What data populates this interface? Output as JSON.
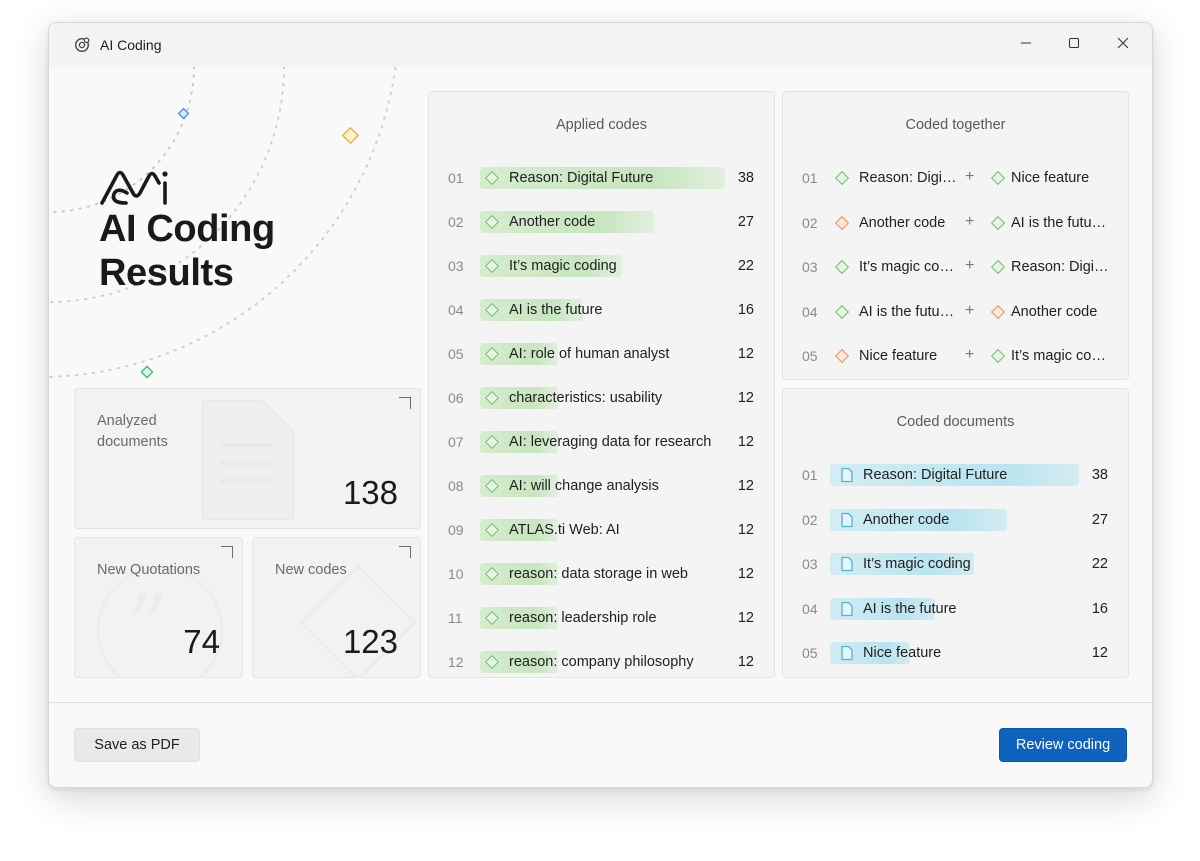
{
  "window": {
    "title": "AI Coding"
  },
  "hero": {
    "title_line1": "AI Coding",
    "title_line2": "Results"
  },
  "stats": {
    "analyzed": {
      "label": "Analyzed documents",
      "value": "138"
    },
    "quotations": {
      "label": "New Quotations",
      "value": "74"
    },
    "codes": {
      "label": "New codes",
      "value": "123"
    }
  },
  "applied_codes": {
    "title": "Applied codes",
    "max_count": 38,
    "rows": [
      {
        "num": "01",
        "label": "Reason: Digital Future",
        "count": "38",
        "fraction": 1.0
      },
      {
        "num": "02",
        "label": "Another code",
        "count": "27",
        "fraction": 0.71
      },
      {
        "num": "03",
        "label": "It’s magic coding",
        "count": "22",
        "fraction": 0.58
      },
      {
        "num": "04",
        "label": "AI is the future",
        "count": "16",
        "fraction": 0.42
      },
      {
        "num": "05",
        "label": "AI: role of human analyst",
        "count": "12",
        "fraction": 0.32
      },
      {
        "num": "06",
        "label": "characteristics: usability",
        "count": "12",
        "fraction": 0.32
      },
      {
        "num": "07",
        "label": "AI: leveraging data for research",
        "count": "12",
        "fraction": 0.32
      },
      {
        "num": "08",
        "label": "AI: will change analysis",
        "count": "12",
        "fraction": 0.32
      },
      {
        "num": "09",
        "label": "ATLAS.ti Web: AI",
        "count": "12",
        "fraction": 0.32
      },
      {
        "num": "10",
        "label": "reason: data storage in web",
        "count": "12",
        "fraction": 0.32
      },
      {
        "num": "11",
        "label": "reason: leadership role",
        "count": "12",
        "fraction": 0.32
      },
      {
        "num": "12",
        "label": "reason: company philosophy",
        "count": "12",
        "fraction": 0.32
      }
    ]
  },
  "coded_together": {
    "title": "Coded together",
    "rows": [
      {
        "num": "01",
        "left": "Reason: Digi…",
        "left_color": "green",
        "right": "Nice feature",
        "right_color": "green"
      },
      {
        "num": "02",
        "left": "Another code",
        "left_color": "orange",
        "right": "AI is the futu…",
        "right_color": "green"
      },
      {
        "num": "03",
        "left": "It’s magic co…",
        "left_color": "green",
        "right": "Reason: Digi…",
        "right_color": "green"
      },
      {
        "num": "04",
        "left": "AI is the futu…",
        "left_color": "green",
        "right": "Another code",
        "right_color": "orange"
      },
      {
        "num": "05",
        "left": "Nice feature",
        "left_color": "orange",
        "right": "It’s magic co…",
        "right_color": "green"
      }
    ],
    "plus_symbol": "+"
  },
  "coded_documents": {
    "title": "Coded documents",
    "rows": [
      {
        "num": "01",
        "label": "Reason: Digital Future",
        "count": "38",
        "fraction": 1.0
      },
      {
        "num": "02",
        "label": "Another code",
        "count": "27",
        "fraction": 0.71
      },
      {
        "num": "03",
        "label": "It’s magic coding",
        "count": "22",
        "fraction": 0.58
      },
      {
        "num": "04",
        "label": "AI is the future",
        "count": "16",
        "fraction": 0.42
      },
      {
        "num": "05",
        "label": "Nice feature",
        "count": "12",
        "fraction": 0.32
      }
    ]
  },
  "footer": {
    "save_pdf": "Save as PDF",
    "review": "Review coding"
  },
  "colors": {
    "accent": "#0f62be",
    "green_diamond": "#6cc26c",
    "orange_diamond": "#e8935a",
    "doc_icon": "#4fb3d9"
  },
  "icons": {
    "app": "ai-coding-icon",
    "minimize": "minimize-icon",
    "maximize": "maximize-icon",
    "close": "close-icon",
    "code": "diamond-code-icon",
    "document": "document-icon"
  }
}
